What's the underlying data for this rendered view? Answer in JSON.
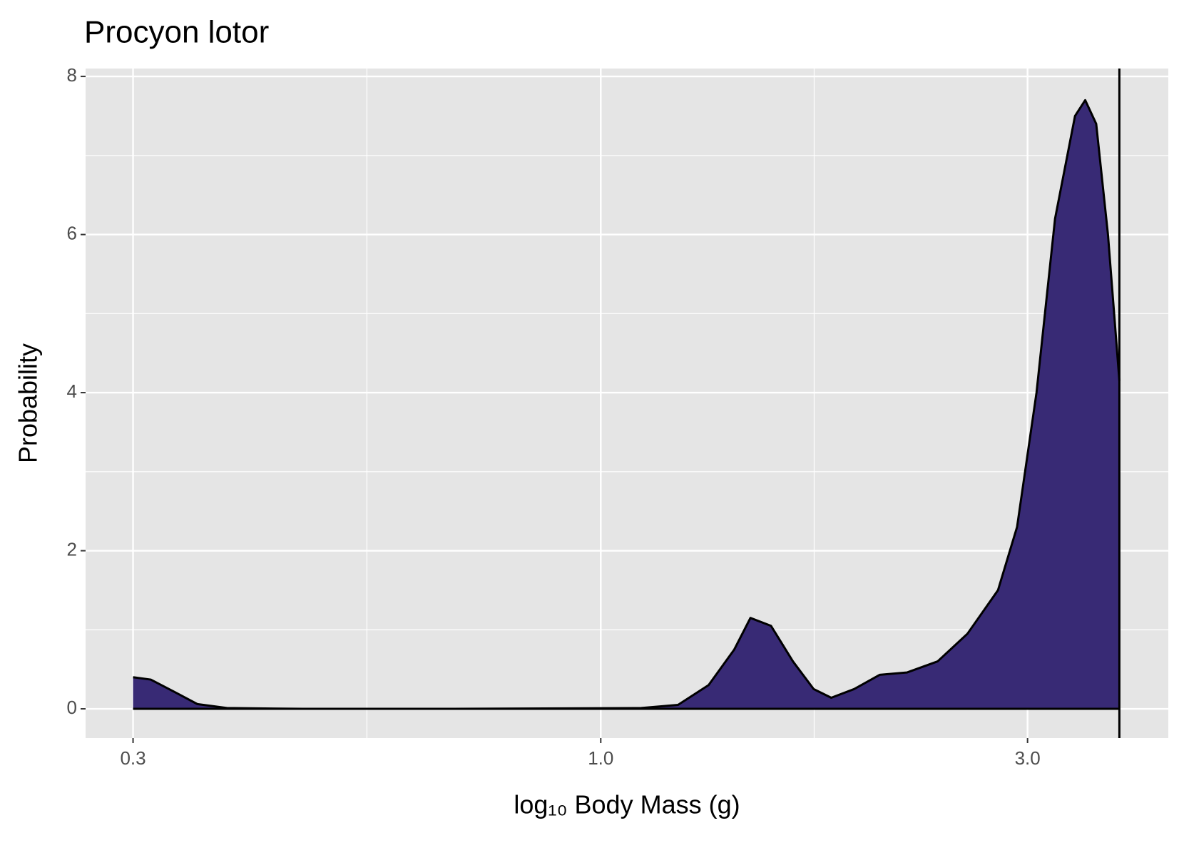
{
  "chart_data": {
    "type": "area",
    "title": "Procyon lotor",
    "x_label": "log₁₀ Body Mass (g)",
    "y_label": "Probability",
    "x_scale": "log",
    "color": "#382a75",
    "grid": true,
    "x": [
      0.3,
      0.314,
      0.333,
      0.354,
      0.382,
      0.464,
      0.684,
      1.11,
      1.22,
      1.32,
      1.41,
      1.47,
      1.55,
      1.64,
      1.73,
      1.81,
      1.92,
      2.05,
      2.2,
      2.38,
      2.57,
      2.78,
      2.92,
      3.07,
      3.22,
      3.39,
      3.48,
      3.58,
      3.69,
      3.8
    ],
    "values": [
      0.4,
      0.37,
      0.22,
      0.06,
      0.01,
      0,
      0,
      0.01,
      0.05,
      0.3,
      0.75,
      1.15,
      1.05,
      0.6,
      0.25,
      0.14,
      0.25,
      0.43,
      0.46,
      0.6,
      0.95,
      1.5,
      2.3,
      4,
      6.2,
      7.5,
      7.7,
      7.4,
      6,
      4.15
    ],
    "vline": 3.8,
    "xlim": [
      0.2655,
      4.31
    ],
    "xticks": [
      0.3,
      {
        "value": 1,
        "label": "1.0"
      },
      {
        "value": 3,
        "label": "3.0"
      }
    ],
    "ylim": [
      -0.37,
      8.1
    ],
    "yticks": [
      0,
      2,
      4,
      6,
      8
    ]
  }
}
